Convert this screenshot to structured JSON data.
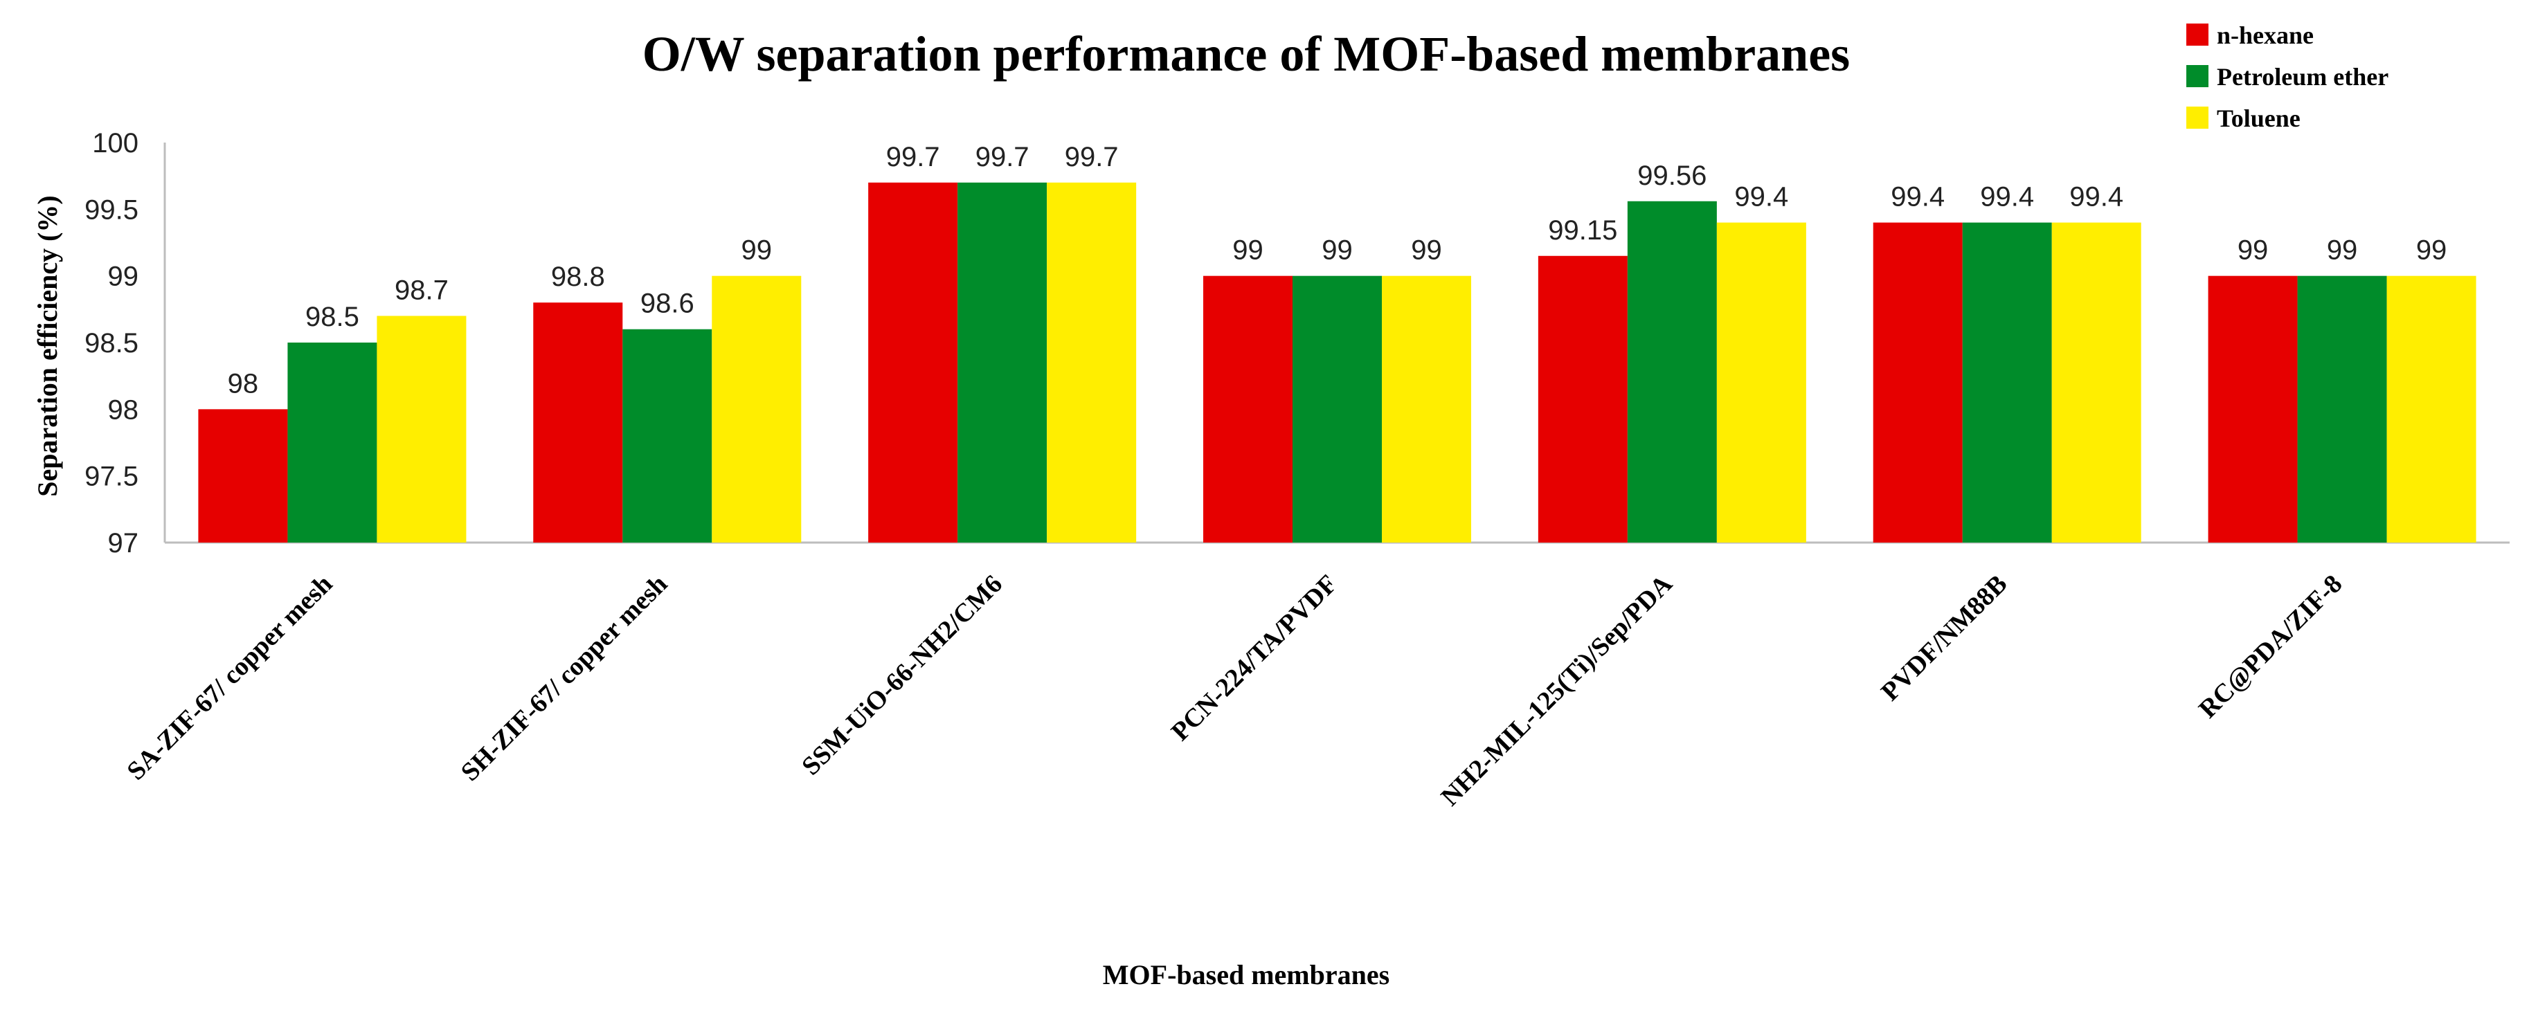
{
  "chart_data": {
    "type": "bar",
    "title": "O/W separation performance of MOF-based membranes",
    "xlabel": "MOF-based membranes",
    "ylabel": "Separation efficiency (%)",
    "ylim": [
      97,
      100
    ],
    "yticks": [
      "97",
      "97.5",
      "98",
      "98.5",
      "99",
      "99.5",
      "100"
    ],
    "categories": [
      "SA-ZIF-67/ copper mesh",
      "SH-ZIF-67/ copper mesh",
      "SSM-UiO-66-NH2/CM6",
      "PCN-224/TA/PVDF",
      "NH2-MIL-125(Ti)/Sep/PDA",
      "PVDF/NM88B",
      "RC@PDA/ZIF-8"
    ],
    "series": [
      {
        "name": "n-hexane",
        "color": "#e60000",
        "values": [
          98,
          98.8,
          99.7,
          99,
          99.15,
          99.4,
          99
        ],
        "labels": [
          "98",
          "98.8",
          "99.7",
          "99",
          "99.15",
          "99.4",
          "99"
        ]
      },
      {
        "name": "Petroleum ether",
        "color": "#008c2a",
        "values": [
          98.5,
          98.6,
          99.7,
          99,
          99.56,
          99.4,
          99
        ],
        "labels": [
          "98.5",
          "98.6",
          "99.7",
          "99",
          "99.56",
          "99.4",
          "99"
        ]
      },
      {
        "name": "Toluene",
        "color": "#ffee00",
        "values": [
          98.7,
          99,
          99.7,
          99,
          99.4,
          99.4,
          99
        ],
        "labels": [
          "98.7",
          "99",
          "99.7",
          "99",
          "99.4",
          "99.4",
          "99"
        ]
      }
    ],
    "legend_position": "top-right",
    "grid": false
  }
}
